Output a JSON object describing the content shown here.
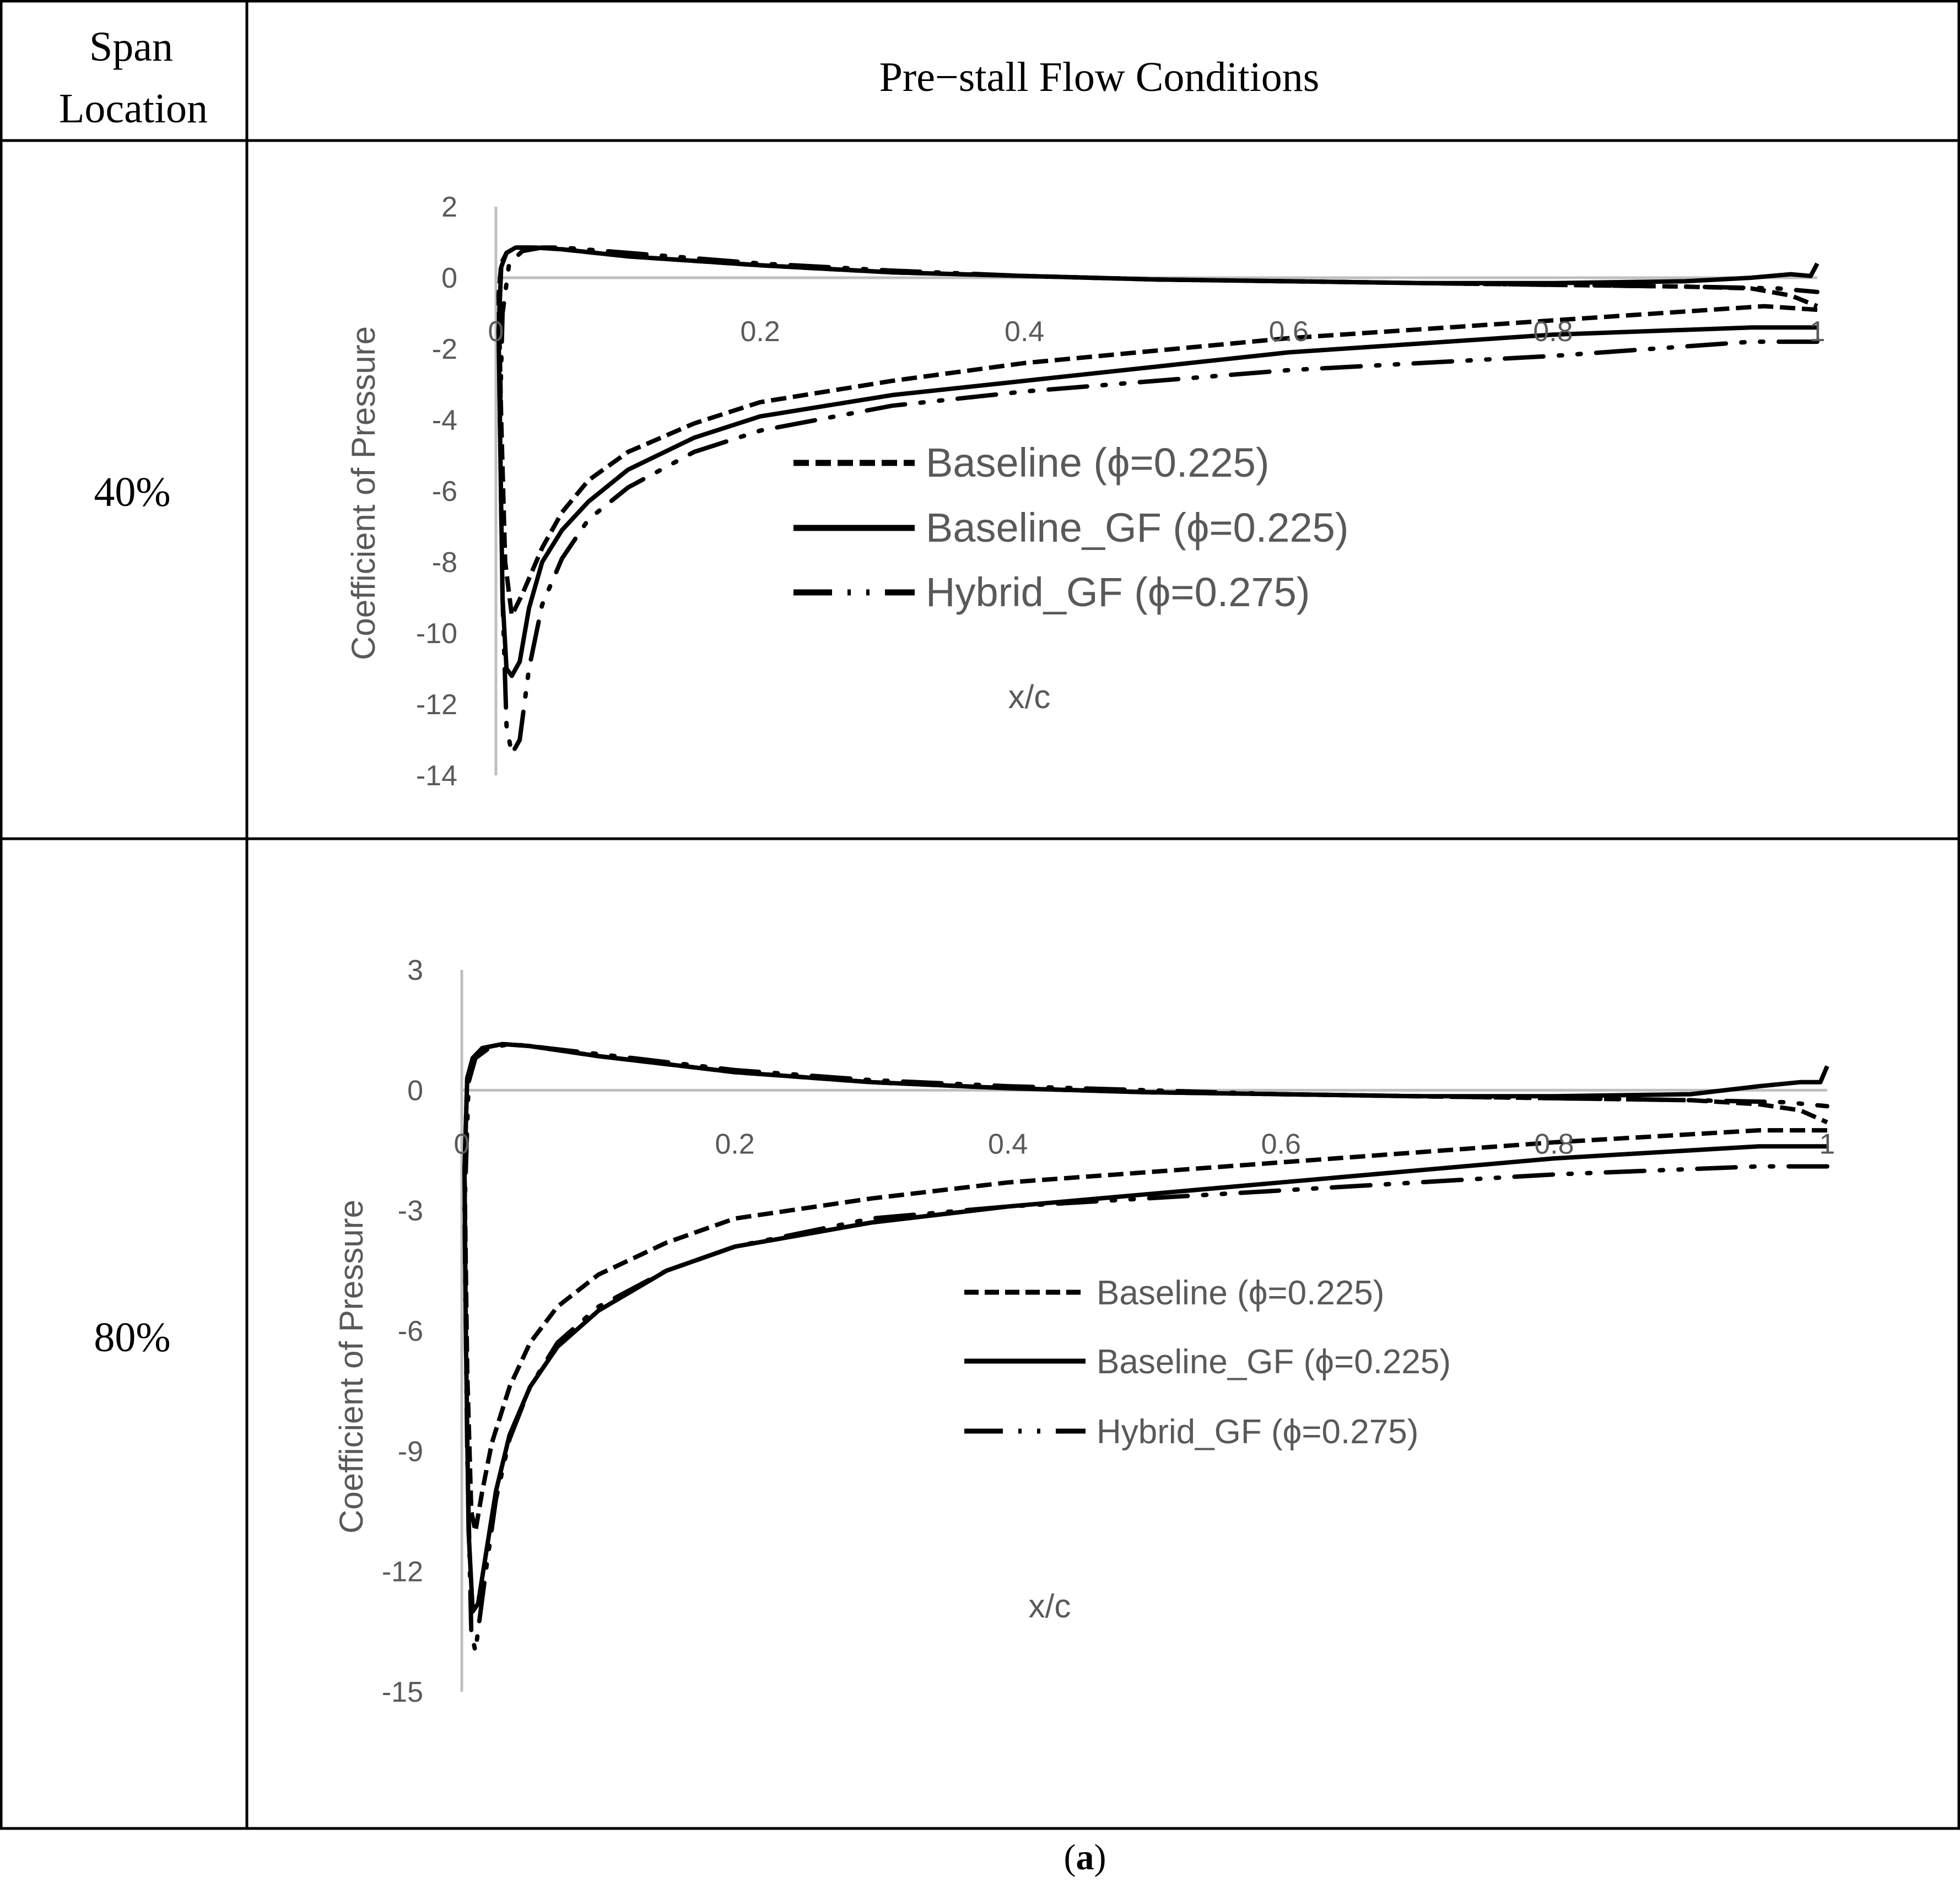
{
  "table": {
    "header_col1": [
      "Span",
      "Location"
    ],
    "header_col2": "Pre−stall Flow Conditions",
    "rows": [
      "40%",
      "80%"
    ],
    "caption_paren_open": "(",
    "caption_letter": "a",
    "caption_paren_close": ")"
  },
  "colors": {
    "series": "#000000",
    "axis": "#bfbfbf",
    "text": "#595959"
  },
  "chart_data": [
    {
      "type": "line",
      "title": "",
      "xlabel": "x/c",
      "ylabel": "Coefficient of Pressure",
      "xlim": [
        0,
        1
      ],
      "ylim": [
        -14,
        2
      ],
      "xticks": [
        0,
        0.2,
        0.4,
        0.6,
        0.8,
        1
      ],
      "xtick_labels": [
        "0",
        "0.2",
        "0.4",
        "0.6",
        "0.8",
        "1"
      ],
      "yticks": [
        2,
        0,
        -2,
        -4,
        -6,
        -8,
        -10,
        -12,
        -14
      ],
      "ytick_labels": [
        "2",
        "0",
        "-2",
        "-4",
        "-6",
        "-8",
        "-10",
        "-12",
        "-14"
      ],
      "series": [
        {
          "name": "Baseline (ϕ=0.225)",
          "dash": "dashed",
          "x": [
            1,
            0.96,
            0.8,
            0.6,
            0.4,
            0.3,
            0.2,
            0.15,
            0.1,
            0.07,
            0.05,
            0.035,
            0.02,
            0.012,
            0.007,
            0.004,
            0.002,
            0.004,
            0.008,
            0.015,
            0.03,
            0.05,
            0.1,
            0.2,
            0.3,
            0.4,
            0.5,
            0.6,
            0.7,
            0.8,
            0.9,
            0.95,
            0.98,
            1
          ],
          "y": [
            -0.9,
            -0.8,
            -1.2,
            -1.7,
            -2.4,
            -2.9,
            -3.5,
            -4.1,
            -4.9,
            -5.7,
            -6.6,
            -7.6,
            -8.9,
            -9.5,
            -8.0,
            -4.0,
            -0.5,
            0.4,
            0.7,
            0.85,
            0.85,
            0.8,
            0.6,
            0.35,
            0.15,
            0.05,
            -0.05,
            -0.1,
            -0.15,
            -0.2,
            -0.25,
            -0.3,
            -0.5,
            -0.8
          ]
        },
        {
          "name": "Baseline_GF (ϕ=0.225)",
          "dash": "solid",
          "x": [
            1,
            0.95,
            0.8,
            0.6,
            0.4,
            0.3,
            0.2,
            0.15,
            0.1,
            0.07,
            0.05,
            0.035,
            0.025,
            0.018,
            0.012,
            0.008,
            0.005,
            0.003,
            0.002,
            0.004,
            0.008,
            0.015,
            0.03,
            0.05,
            0.1,
            0.2,
            0.3,
            0.4,
            0.5,
            0.6,
            0.7,
            0.8,
            0.9,
            0.95,
            0.98,
            0.995,
            1
          ],
          "y": [
            -1.4,
            -1.4,
            -1.6,
            -2.1,
            -2.9,
            -3.3,
            -3.9,
            -4.5,
            -5.4,
            -6.3,
            -7.1,
            -8.0,
            -9.3,
            -10.8,
            -11.2,
            -11.0,
            -9.0,
            -4.0,
            -1.5,
            0.3,
            0.7,
            0.85,
            0.85,
            0.8,
            0.6,
            0.35,
            0.15,
            0.05,
            -0.05,
            -0.1,
            -0.15,
            -0.15,
            -0.1,
            0.0,
            0.1,
            0.05,
            0.4
          ]
        },
        {
          "name": "Hybrid_GF (ϕ=0.275)",
          "dash": "dash-dot-dot",
          "x": [
            1,
            0.95,
            0.8,
            0.6,
            0.4,
            0.3,
            0.2,
            0.15,
            0.1,
            0.07,
            0.05,
            0.035,
            0.025,
            0.018,
            0.012,
            0.008,
            0.005,
            0.003,
            0.005,
            0.01,
            0.02,
            0.035,
            0.05,
            0.1,
            0.2,
            0.3,
            0.4,
            0.5,
            0.6,
            0.7,
            0.8,
            0.9,
            0.97,
            1
          ],
          "y": [
            -1.8,
            -1.8,
            -2.2,
            -2.6,
            -3.2,
            -3.6,
            -4.3,
            -4.9,
            -5.9,
            -6.8,
            -7.9,
            -9.2,
            -11.0,
            -13.0,
            -13.4,
            -12.6,
            -9.0,
            -4.0,
            -1.0,
            0.4,
            0.75,
            0.85,
            0.85,
            0.7,
            0.4,
            0.2,
            0.05,
            -0.05,
            -0.1,
            -0.15,
            -0.2,
            -0.25,
            -0.3,
            -0.4
          ]
        }
      ]
    },
    {
      "type": "line",
      "title": "",
      "xlabel": "x/c",
      "ylabel": "Coefficient of Pressure",
      "xlim": [
        0,
        1
      ],
      "ylim": [
        -15,
        3
      ],
      "xticks": [
        0,
        0.2,
        0.4,
        0.6,
        0.8,
        1
      ],
      "xtick_labels": [
        "0",
        "0.2",
        "0.4",
        "0.6",
        "0.8",
        "1"
      ],
      "yticks": [
        3,
        0,
        -3,
        -6,
        -9,
        -12,
        -15
      ],
      "ytick_labels": [
        "3",
        "0",
        "-3",
        "-6",
        "-9",
        "-12",
        "-15"
      ],
      "series": [
        {
          "name": "Baseline (ϕ=0.225)",
          "dash": "dashed",
          "x": [
            1,
            0.95,
            0.8,
            0.6,
            0.4,
            0.3,
            0.2,
            0.15,
            0.1,
            0.07,
            0.05,
            0.035,
            0.022,
            0.015,
            0.01,
            0.007,
            0.004,
            0.002,
            0.004,
            0.008,
            0.015,
            0.03,
            0.05,
            0.1,
            0.2,
            0.3,
            0.4,
            0.5,
            0.6,
            0.7,
            0.8,
            0.9,
            0.95,
            0.98,
            1
          ],
          "y": [
            -1.0,
            -1.0,
            -1.3,
            -1.8,
            -2.3,
            -2.7,
            -3.2,
            -3.8,
            -4.6,
            -5.4,
            -6.3,
            -7.4,
            -8.8,
            -10.0,
            -11.0,
            -10.5,
            -7.0,
            -2.0,
            0.3,
            0.8,
            1.05,
            1.15,
            1.1,
            0.85,
            0.45,
            0.2,
            0.05,
            -0.05,
            -0.1,
            -0.15,
            -0.2,
            -0.25,
            -0.35,
            -0.5,
            -0.8
          ]
        },
        {
          "name": "Baseline_GF (ϕ=0.225)",
          "dash": "solid",
          "x": [
            1,
            0.95,
            0.8,
            0.6,
            0.4,
            0.3,
            0.2,
            0.15,
            0.1,
            0.07,
            0.05,
            0.035,
            0.025,
            0.018,
            0.012,
            0.008,
            0.005,
            0.003,
            0.002,
            0.004,
            0.008,
            0.015,
            0.03,
            0.05,
            0.1,
            0.2,
            0.3,
            0.4,
            0.5,
            0.6,
            0.7,
            0.8,
            0.9,
            0.95,
            0.98,
            0.995,
            1
          ],
          "y": [
            -1.4,
            -1.4,
            -1.7,
            -2.3,
            -2.9,
            -3.3,
            -3.9,
            -4.5,
            -5.5,
            -6.4,
            -7.4,
            -8.6,
            -10.0,
            -11.5,
            -12.8,
            -13.0,
            -11.0,
            -6.0,
            -2.0,
            0.3,
            0.8,
            1.05,
            1.15,
            1.1,
            0.85,
            0.45,
            0.2,
            0.05,
            -0.05,
            -0.1,
            -0.15,
            -0.15,
            -0.1,
            0.1,
            0.2,
            0.2,
            0.6
          ]
        },
        {
          "name": "Hybrid_GF (ϕ=0.275)",
          "dash": "dash-dot-dot",
          "x": [
            1,
            0.95,
            0.8,
            0.6,
            0.4,
            0.3,
            0.2,
            0.15,
            0.1,
            0.07,
            0.05,
            0.035,
            0.025,
            0.018,
            0.013,
            0.01,
            0.007,
            0.004,
            0.002,
            0.005,
            0.01,
            0.02,
            0.035,
            0.05,
            0.1,
            0.2,
            0.3,
            0.4,
            0.5,
            0.6,
            0.7,
            0.8,
            0.9,
            0.97,
            1
          ],
          "y": [
            -1.9,
            -1.9,
            -2.1,
            -2.5,
            -2.9,
            -3.2,
            -3.9,
            -4.5,
            -5.4,
            -6.3,
            -7.4,
            -8.7,
            -10.2,
            -11.9,
            -13.2,
            -14.0,
            -13.5,
            -9.0,
            -3.0,
            0.2,
            0.8,
            1.05,
            1.15,
            1.1,
            0.9,
            0.5,
            0.25,
            0.1,
            0.0,
            -0.1,
            -0.15,
            -0.2,
            -0.25,
            -0.3,
            -0.4
          ]
        }
      ]
    }
  ]
}
